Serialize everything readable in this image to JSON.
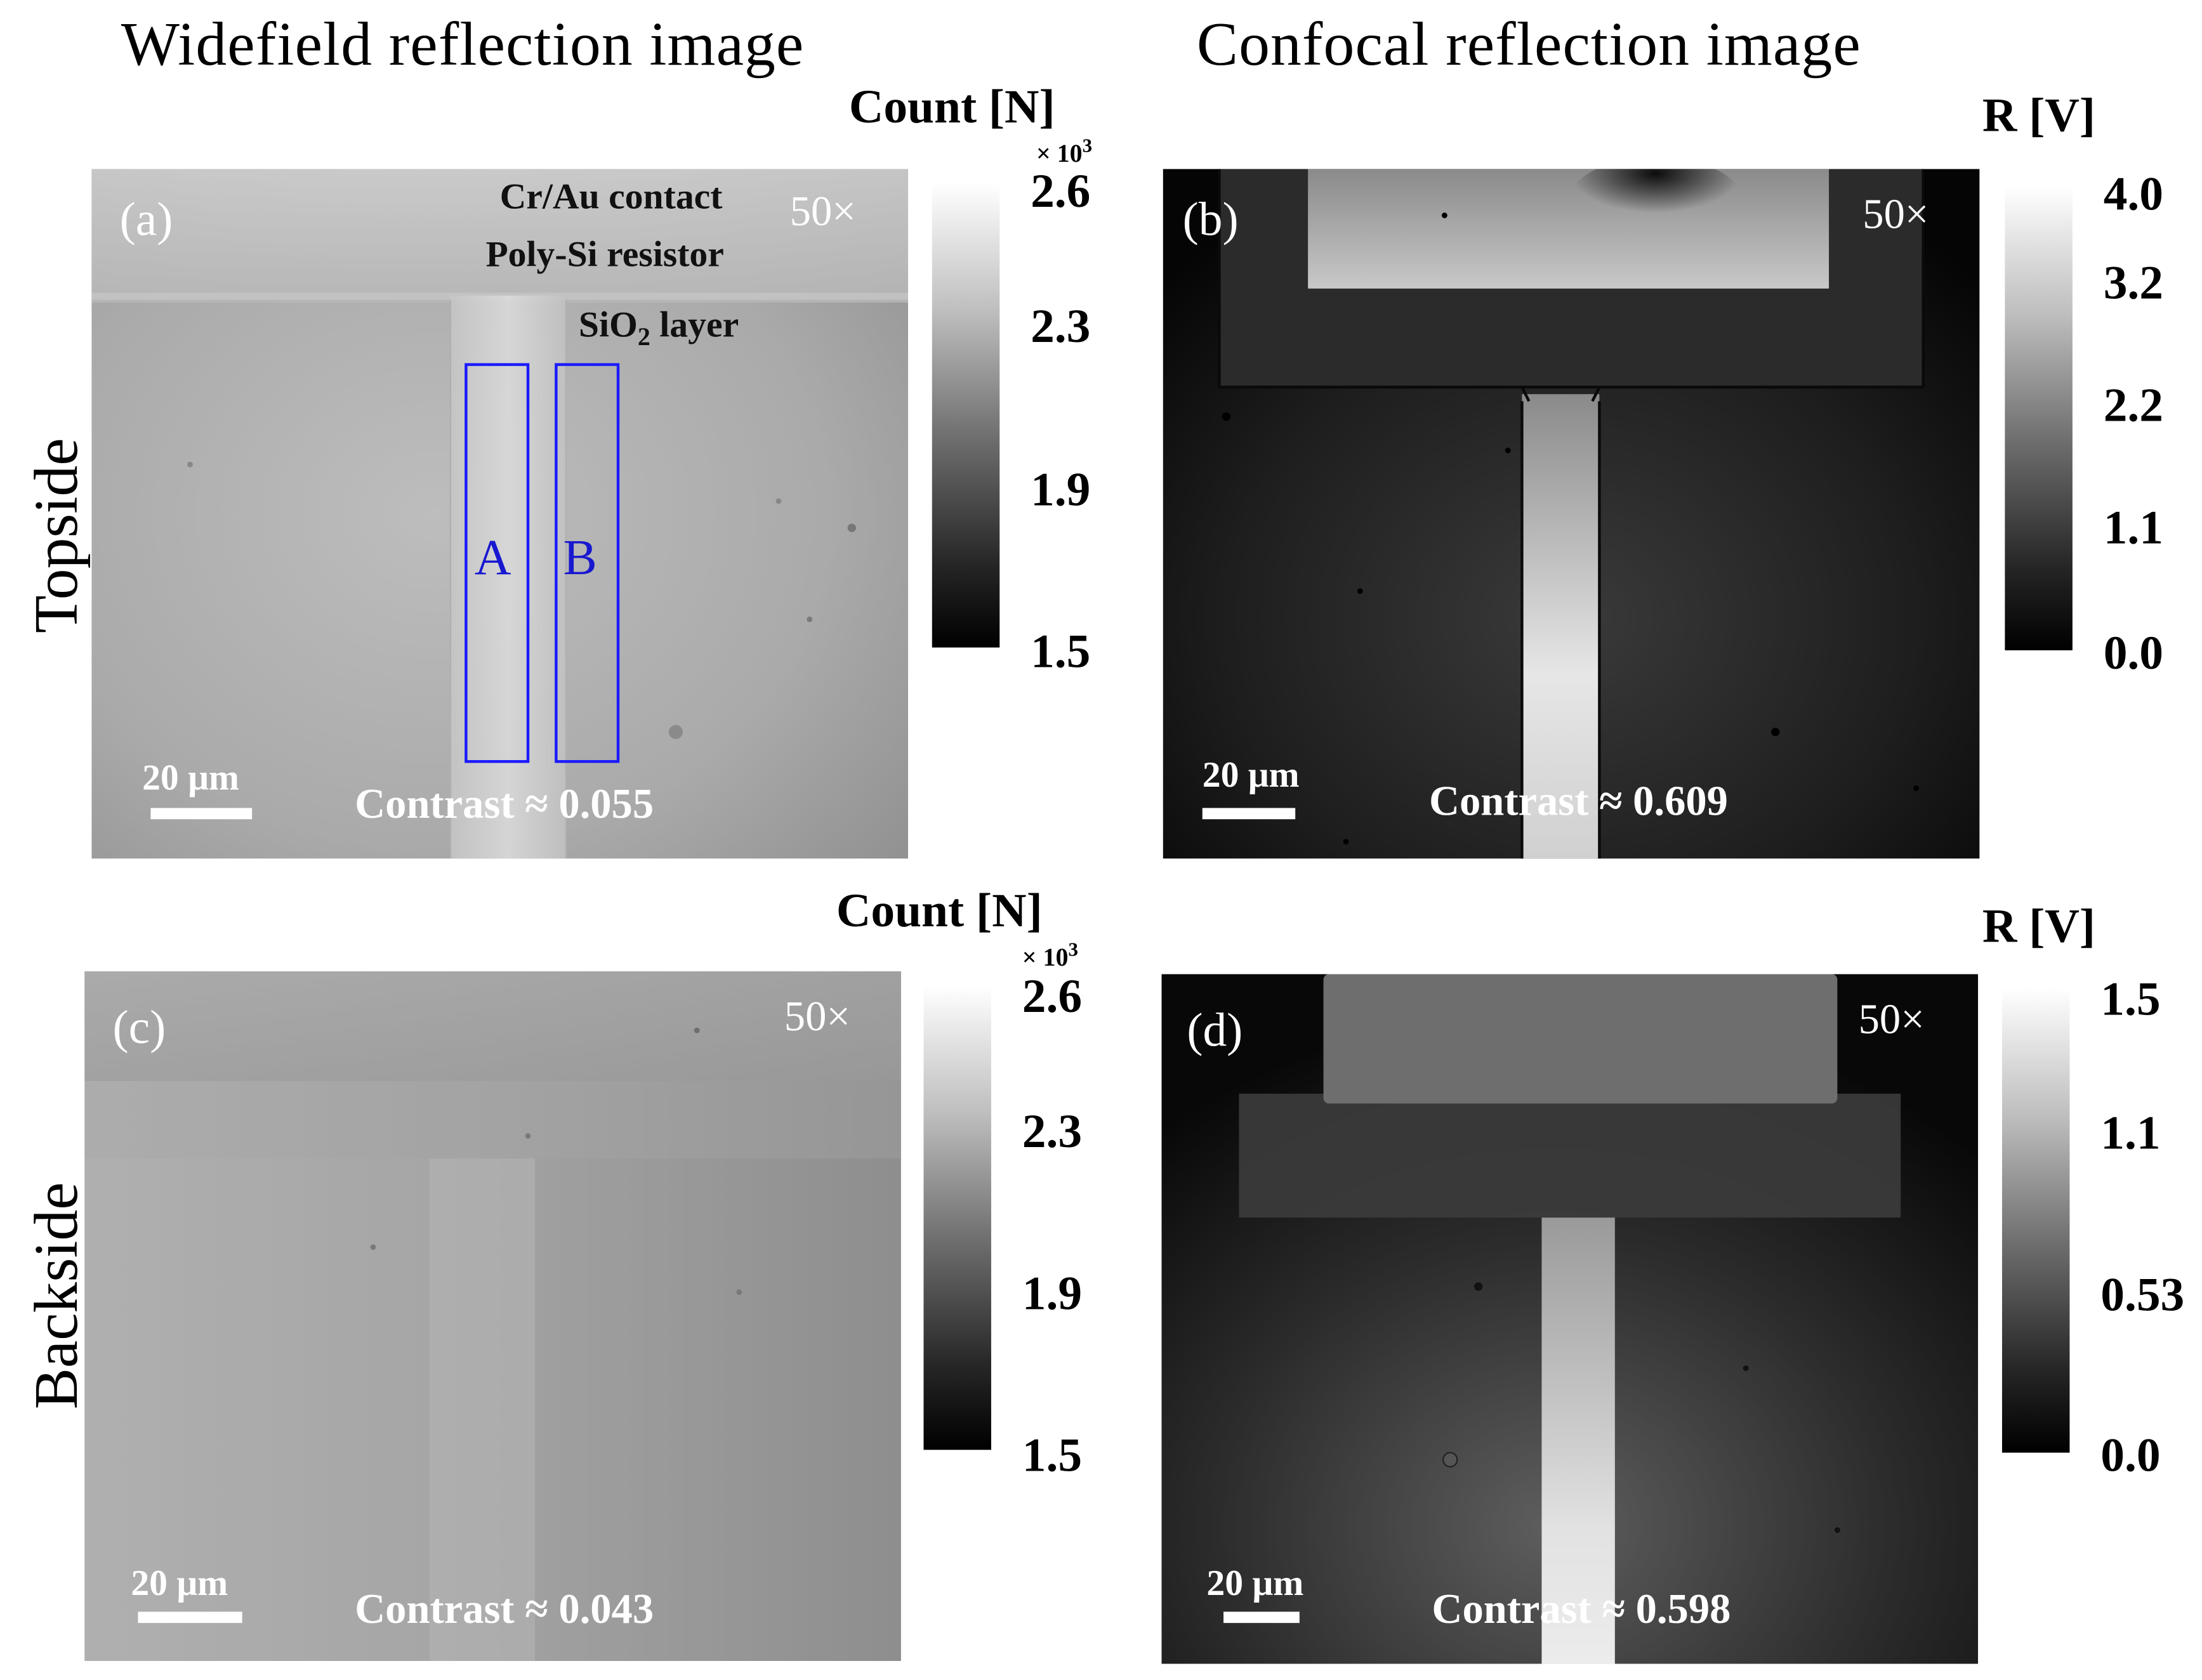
{
  "columns": {
    "widefield": "Widefield reflection image",
    "confocal": "Confocal reflection image"
  },
  "rows": {
    "top": "Topside",
    "bottom": "Backside"
  },
  "panels": {
    "a": {
      "letter": "(a)",
      "magnification": "50×",
      "contrast": "Contrast ≈ 0.055",
      "scale_label": "20 μm",
      "labels": {
        "contact": "Cr/Au contact",
        "resistor": "Poly-Si resistor",
        "sio2_main": "SiO",
        "sio2_sub": "2",
        "sio2_tail": " layer"
      },
      "rois": {
        "a": "A",
        "b": "B"
      },
      "roi_color": "#1a1aff"
    },
    "b": {
      "letter": "(b)",
      "magnification": "50×",
      "contrast": "Contrast ≈ 0.609",
      "scale_label": "20 μm"
    },
    "c": {
      "letter": "(c)",
      "magnification": "50×",
      "contrast": "Contrast ≈ 0.043",
      "scale_label": "20 μm"
    },
    "d": {
      "letter": "(d)",
      "magnification": "50×",
      "contrast": "Contrast ≈ 0.598",
      "scale_label": "20 μm"
    }
  },
  "colorbars": {
    "a": {
      "title": "Count [N]",
      "multiplier": "× 10",
      "exponent": "3",
      "ticks": [
        "2.6",
        "2.3",
        "1.9",
        "1.5"
      ]
    },
    "b": {
      "title": "R [V]",
      "ticks": [
        "4.0",
        "3.2",
        "2.2",
        "1.1",
        "0.0"
      ]
    },
    "c": {
      "title": "Count [N]",
      "multiplier": "× 10",
      "exponent": "3",
      "ticks": [
        "2.6",
        "2.3",
        "1.9",
        "1.5"
      ]
    },
    "d": {
      "title": "R [V]",
      "ticks": [
        "1.5",
        "1.1",
        "0.53",
        "0.0"
      ]
    }
  }
}
